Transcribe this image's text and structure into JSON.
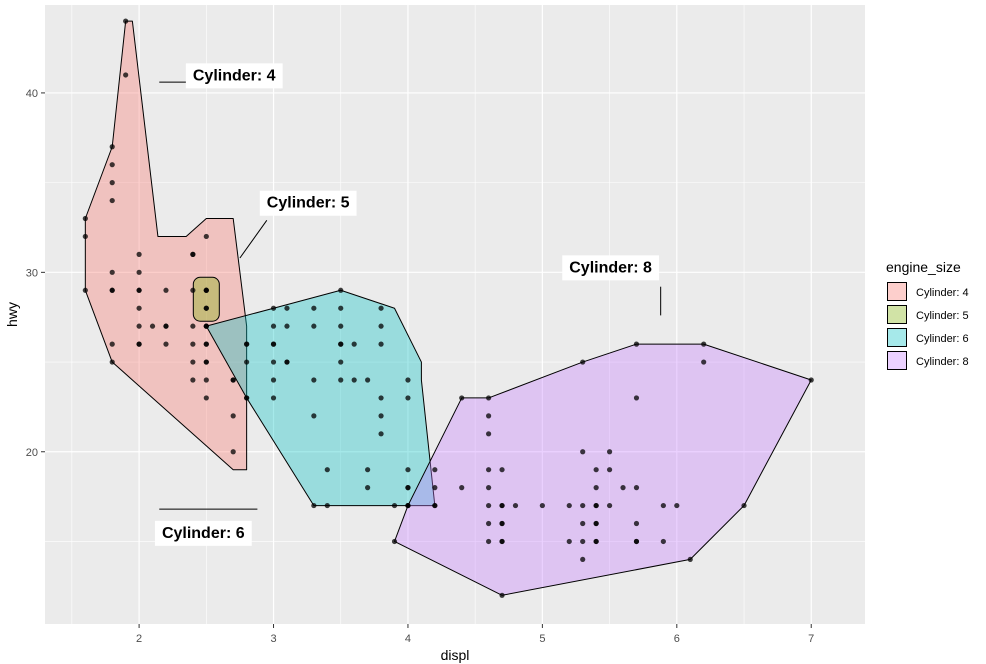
{
  "chart_data": {
    "type": "scatter",
    "title": "",
    "xlabel": "displ",
    "ylabel": "hwy",
    "xlim": [
      1.3,
      7.4
    ],
    "ylim": [
      10.4,
      44.9
    ],
    "x_ticks": [
      2,
      3,
      4,
      5,
      6,
      7
    ],
    "y_ticks": [
      20,
      30,
      40
    ],
    "x_tick_labels": [
      "2",
      "3",
      "4",
      "5",
      "6",
      "7"
    ],
    "y_tick_labels": [
      "20",
      "30",
      "40"
    ],
    "grid": true,
    "legend": {
      "title": "engine_size",
      "position": "right",
      "entries": [
        "Cylinder: 4",
        "Cylinder: 5",
        "Cylinder: 6",
        "Cylinder: 8"
      ]
    },
    "colors": {
      "panel": "#EBEBEB",
      "grid": "#FFFFFF",
      "point": "#000000",
      "Cylinder: 4": "#F8766D",
      "Cylinder: 5": "#7CAE00",
      "Cylinder: 6": "#00BFC4",
      "Cylinder: 8": "#C77CFF"
    },
    "series": [
      {
        "name": "Cylinder: 4",
        "points": [
          [
            1.8,
            29
          ],
          [
            1.8,
            29
          ],
          [
            2.0,
            31
          ],
          [
            2.0,
            30
          ],
          [
            1.8,
            26
          ],
          [
            1.8,
            25
          ],
          [
            2.0,
            28
          ],
          [
            2.0,
            27
          ],
          [
            2.0,
            26
          ],
          [
            2.4,
            26
          ],
          [
            2.4,
            24
          ],
          [
            2.4,
            25
          ],
          [
            2.5,
            27
          ],
          [
            2.5,
            25
          ],
          [
            2.5,
            26
          ],
          [
            2.5,
            23
          ],
          [
            2.4,
            27
          ],
          [
            2.2,
            26
          ],
          [
            2.2,
            27
          ],
          [
            2.4,
            29
          ],
          [
            2.4,
            31
          ],
          [
            2.5,
            32
          ],
          [
            2.7,
            20
          ],
          [
            2.7,
            22
          ],
          [
            2.7,
            24
          ],
          [
            2.8,
            23
          ],
          [
            1.6,
            33
          ],
          [
            1.6,
            32
          ],
          [
            1.6,
            29
          ],
          [
            1.8,
            37
          ],
          [
            1.8,
            35
          ],
          [
            1.8,
            36
          ],
          [
            1.8,
            34
          ],
          [
            1.8,
            30
          ],
          [
            1.9,
            44
          ],
          [
            1.9,
            41
          ],
          [
            2.0,
            29
          ],
          [
            2.1,
            27
          ],
          [
            2.2,
            29
          ],
          [
            2.2,
            27
          ],
          [
            2.4,
            31
          ],
          [
            2.5,
            25
          ],
          [
            2.5,
            24
          ],
          [
            2.0,
            26
          ],
          [
            2.0,
            29
          ],
          [
            2.5,
            27
          ]
        ],
        "hull": [
          [
            1.9,
            44
          ],
          [
            1.95,
            44
          ],
          [
            2.14,
            32
          ],
          [
            2.35,
            32
          ],
          [
            2.5,
            33
          ],
          [
            2.7,
            33
          ],
          [
            2.8,
            27
          ],
          [
            2.8,
            19
          ],
          [
            2.7,
            19
          ],
          [
            1.8,
            25
          ],
          [
            1.6,
            29
          ],
          [
            1.6,
            33
          ],
          [
            1.8,
            37
          ]
        ]
      },
      {
        "name": "Cylinder: 5",
        "points": [
          [
            2.5,
            29
          ],
          [
            2.5,
            28
          ],
          [
            2.5,
            29
          ],
          [
            2.5,
            28
          ],
          [
            2.5,
            29
          ]
        ],
        "hull": [
          [
            2.5,
            29
          ],
          [
            2.5,
            28
          ]
        ]
      },
      {
        "name": "Cylinder: 6",
        "points": [
          [
            2.8,
            26
          ],
          [
            3.1,
            27
          ],
          [
            2.8,
            25
          ],
          [
            3.1,
            25
          ],
          [
            2.8,
            26
          ],
          [
            3.0,
            26
          ],
          [
            3.0,
            24
          ],
          [
            3.1,
            25
          ],
          [
            3.3,
            22
          ],
          [
            3.3,
            24
          ],
          [
            3.5,
            26
          ],
          [
            3.3,
            27
          ],
          [
            3.5,
            25
          ],
          [
            3.5,
            28
          ],
          [
            3.5,
            29
          ],
          [
            3.6,
            26
          ],
          [
            3.7,
            24
          ],
          [
            3.8,
            23
          ],
          [
            3.8,
            22
          ],
          [
            3.8,
            21
          ],
          [
            3.8,
            28
          ],
          [
            3.8,
            27
          ],
          [
            3.8,
            26
          ],
          [
            3.0,
            27
          ],
          [
            3.0,
            26
          ],
          [
            3.0,
            25
          ],
          [
            3.5,
            27
          ],
          [
            3.4,
            17
          ],
          [
            3.3,
            17
          ],
          [
            3.4,
            19
          ],
          [
            3.7,
            19
          ],
          [
            3.7,
            18
          ],
          [
            4.0,
            24
          ],
          [
            4.0,
            23
          ],
          [
            4.0,
            18
          ],
          [
            4.0,
            19
          ],
          [
            4.0,
            17
          ],
          [
            4.2,
            19
          ],
          [
            4.2,
            17
          ],
          [
            2.7,
            24
          ],
          [
            3.0,
            23
          ],
          [
            2.8,
            23
          ],
          [
            3.9,
            17
          ],
          [
            3.5,
            24
          ],
          [
            3.5,
            26
          ],
          [
            2.5,
            27
          ],
          [
            2.5,
            26
          ],
          [
            3.1,
            28
          ],
          [
            3.6,
            24
          ],
          [
            3.3,
            28
          ],
          [
            3.0,
            28
          ]
        ],
        "hull": [
          [
            2.5,
            27
          ],
          [
            3.0,
            28
          ],
          [
            3.5,
            29
          ],
          [
            3.9,
            28
          ],
          [
            4.1,
            25
          ],
          [
            4.1,
            24
          ],
          [
            4.2,
            17
          ],
          [
            3.3,
            17
          ],
          [
            2.8,
            23
          ]
        ]
      },
      {
        "name": "Cylinder: 8",
        "points": [
          [
            5.7,
            26
          ],
          [
            5.7,
            23
          ],
          [
            6.2,
            26
          ],
          [
            6.2,
            25
          ],
          [
            7.0,
            24
          ],
          [
            5.3,
            20
          ],
          [
            5.3,
            15
          ],
          [
            5.7,
            15
          ],
          [
            6.5,
            17
          ],
          [
            5.7,
            16
          ],
          [
            4.7,
            17
          ],
          [
            4.7,
            12
          ],
          [
            5.2,
            15
          ],
          [
            5.2,
            17
          ],
          [
            5.7,
            15
          ],
          [
            5.9,
            15
          ],
          [
            4.6,
            17
          ],
          [
            5.4,
            17
          ],
          [
            5.4,
            15
          ],
          [
            4.6,
            21
          ],
          [
            4.6,
            22
          ],
          [
            5.4,
            18
          ],
          [
            4.6,
            19
          ],
          [
            4.6,
            18
          ],
          [
            5.4,
            17
          ],
          [
            4.6,
            23
          ],
          [
            4.6,
            16
          ],
          [
            4.6,
            15
          ],
          [
            4.7,
            16
          ],
          [
            4.7,
            15
          ],
          [
            4.7,
            19
          ],
          [
            4.0,
            17
          ],
          [
            4.0,
            18
          ],
          [
            4.2,
            18
          ],
          [
            4.2,
            17
          ],
          [
            5.3,
            14
          ],
          [
            5.3,
            16
          ],
          [
            5.3,
            17
          ],
          [
            5.3,
            25
          ],
          [
            5.4,
            16
          ],
          [
            5.6,
            18
          ],
          [
            5.9,
            17
          ],
          [
            6.1,
            14
          ],
          [
            4.4,
            23
          ],
          [
            4.4,
            18
          ],
          [
            4.8,
            17
          ],
          [
            5.0,
            17
          ],
          [
            5.4,
            19
          ],
          [
            5.4,
            16
          ],
          [
            5.5,
            20
          ],
          [
            5.5,
            19
          ],
          [
            5.5,
            17
          ],
          [
            5.7,
            18
          ],
          [
            6.0,
            17
          ],
          [
            5.4,
            15
          ],
          [
            4.7,
            17
          ],
          [
            3.9,
            15
          ],
          [
            4.0,
            17
          ],
          [
            4.7,
            16
          ],
          [
            4.7,
            15
          ]
        ],
        "hull": [
          [
            4.4,
            23
          ],
          [
            4.6,
            23
          ],
          [
            5.3,
            25
          ],
          [
            5.7,
            26
          ],
          [
            6.2,
            26
          ],
          [
            7.0,
            24
          ],
          [
            6.5,
            17
          ],
          [
            6.1,
            14
          ],
          [
            4.7,
            12
          ],
          [
            3.9,
            15
          ],
          [
            4.0,
            17
          ]
        ]
      }
    ],
    "annotations": [
      {
        "label": "Cylinder: 4",
        "text_at": [
          2.4,
          40.7
        ],
        "line": [
          [
            2.15,
            40.6
          ],
          [
            2.38,
            40.6
          ]
        ]
      },
      {
        "label": "Cylinder: 5",
        "text_at": [
          2.95,
          33.6
        ],
        "line": [
          [
            2.75,
            30.8
          ],
          [
            2.95,
            32.9
          ]
        ]
      },
      {
        "label": "Cylinder: 6",
        "text_at": [
          2.17,
          15.2
        ],
        "line": [
          [
            2.15,
            16.8
          ],
          [
            2.88,
            16.8
          ]
        ]
      },
      {
        "label": "Cylinder: 8",
        "text_at": [
          5.2,
          30.0
        ],
        "line": [
          [
            5.88,
            29.2
          ],
          [
            5.88,
            27.6
          ]
        ]
      }
    ]
  }
}
